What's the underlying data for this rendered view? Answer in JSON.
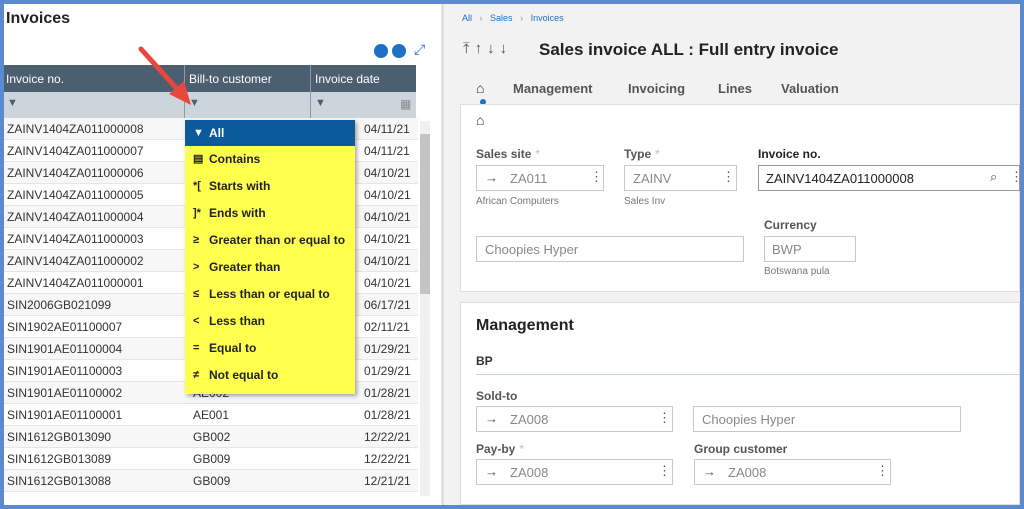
{
  "left_panel": {
    "title": "Invoices",
    "table": {
      "headers": [
        "Invoice no.",
        "Bill-to customer",
        "Invoice date"
      ],
      "rows": [
        {
          "invoice": "ZAINV1404ZA011000008",
          "date": "04/11/21"
        },
        {
          "invoice": "ZAINV1404ZA011000007",
          "date": "04/11/21"
        },
        {
          "invoice": "ZAINV1404ZA011000006",
          "date": "04/10/21"
        },
        {
          "invoice": "ZAINV1404ZA011000005",
          "date": "04/10/21"
        },
        {
          "invoice": "ZAINV1404ZA011000004",
          "date": "04/10/21"
        },
        {
          "invoice": "ZAINV1404ZA011000003",
          "date": "04/10/21"
        },
        {
          "invoice": "ZAINV1404ZA011000002",
          "date": "04/10/21"
        },
        {
          "invoice": "ZAINV1404ZA011000001",
          "date": "04/10/21"
        },
        {
          "invoice": "SIN2006GB021099",
          "date": "06/17/21"
        },
        {
          "invoice": "SIN1902AE01100007",
          "date": "02/11/21"
        },
        {
          "invoice": "SIN1901AE01100004",
          "date": "01/29/21"
        },
        {
          "invoice": "SIN1901AE01100003",
          "date": "01/29/21"
        },
        {
          "invoice": "SIN1901AE01100002",
          "customer": "AE002",
          "date": "01/28/21"
        },
        {
          "invoice": "SIN1901AE01100001",
          "customer": "AE001",
          "date": "01/28/21"
        },
        {
          "invoice": "SIN1612GB013090",
          "customer": "GB002",
          "date": "12/22/21"
        },
        {
          "invoice": "SIN1612GB013089",
          "customer": "GB009",
          "date": "12/22/21"
        },
        {
          "invoice": "SIN1612GB013088",
          "customer": "GB009",
          "date": "12/21/21"
        }
      ]
    },
    "filter_menu": [
      "All",
      "Contains",
      "Starts with",
      "Ends with",
      "Greater than or equal to",
      "Greater than",
      "Less than or equal to",
      "Less than",
      "Equal to",
      "Not equal to"
    ]
  },
  "right_panel": {
    "breadcrumb": [
      "All",
      "Sales",
      "Invoices"
    ],
    "title": "Sales invoice ALL : Full entry invoice",
    "tabs": [
      "Management",
      "Invoicing",
      "Lines",
      "Valuation"
    ],
    "required_mark": "*",
    "header_fields": {
      "sales_site": {
        "label": "Sales site",
        "value": "ZA011",
        "description": "African Computers"
      },
      "type": {
        "label": "Type",
        "value": "ZAINV",
        "description": "Sales Inv"
      },
      "invoice_no": {
        "label": "Invoice no.",
        "value": "ZAINV1404ZA011000008"
      },
      "customer_name": "Choopies Hyper",
      "currency": {
        "label": "Currency",
        "value": "BWP",
        "description": "Botswana pula"
      }
    },
    "management": {
      "title": "Management",
      "subtitle": "BP",
      "sold_to": {
        "label": "Sold-to",
        "value": "ZA008",
        "name": "Choopies Hyper"
      },
      "pay_by": {
        "label": "Pay-by",
        "value": "ZA008"
      },
      "group_customer": {
        "label": "Group customer",
        "value": "ZA008"
      }
    }
  }
}
